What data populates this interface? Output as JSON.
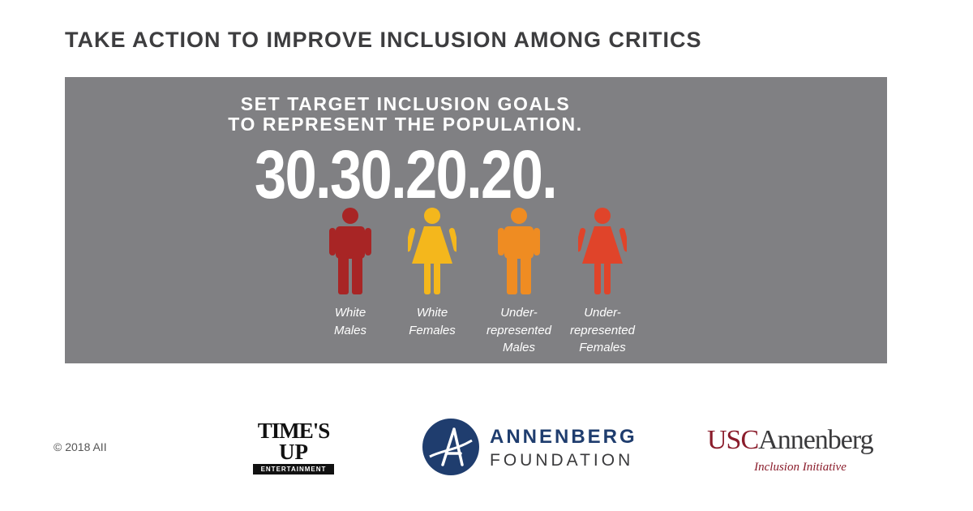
{
  "title": "TAKE ACTION TO IMPROVE INCLUSION AMONG CRITICS",
  "panel": {
    "subtitle_line1": "SET TARGET INCLUSION GOALS",
    "subtitle_line2": "TO REPRESENT THE POPULATION.",
    "headline": "30.30.20.20.",
    "groups": [
      {
        "label_lines": [
          "White",
          "Males"
        ],
        "figure": "male-icon",
        "color": "#a82525"
      },
      {
        "label_lines": [
          "White",
          "Females"
        ],
        "figure": "female-icon",
        "color": "#f4b71c"
      },
      {
        "label_lines": [
          "Under-",
          "represented",
          "Males"
        ],
        "figure": "male-icon",
        "color": "#ef8c22"
      },
      {
        "label_lines": [
          "Under-",
          "represented",
          "Females"
        ],
        "figure": "female-icon",
        "color": "#e0442a"
      }
    ]
  },
  "footer": {
    "copyright": "© 2018 AII",
    "timesup": {
      "line1": "TIME'S",
      "line2": "UP",
      "bar": "ENTERTAINMENT"
    },
    "annenberg": {
      "line1": "ANNENBERG",
      "line2": "FOUNDATION",
      "mark_letter": "A"
    },
    "usc": {
      "part1": "USC",
      "part2": "Annenberg",
      "sub": "Inclusion Initiative"
    }
  }
}
